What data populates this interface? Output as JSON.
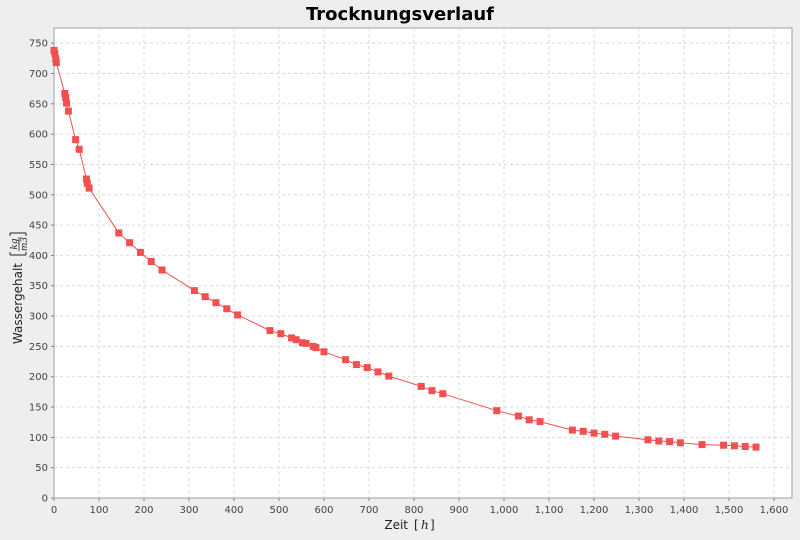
{
  "chart_data": {
    "type": "line",
    "title": "Trocknungsverlauf",
    "xlabel": "Zeit",
    "x_unit": "h",
    "ylabel": "Wassergehalt",
    "y_unit_num": "kg",
    "y_unit_den": "m3",
    "xlim": [
      0,
      1640
    ],
    "ylim": [
      0,
      775
    ],
    "xticks": [
      0,
      100,
      200,
      300,
      400,
      500,
      600,
      700,
      800,
      900,
      1000,
      1100,
      1200,
      1300,
      1400,
      1500,
      1600
    ],
    "xtick_labels": [
      "0",
      "100",
      "200",
      "300",
      "400",
      "500",
      "600",
      "700",
      "800",
      "900",
      "1,000",
      "1,100",
      "1,200",
      "1,300",
      "1,400",
      "1,500",
      "1,600"
    ],
    "yticks": [
      0,
      50,
      100,
      150,
      200,
      250,
      300,
      350,
      400,
      450,
      500,
      550,
      600,
      650,
      700,
      750
    ],
    "grid": true,
    "colors": {
      "series": "#f05050",
      "plot_bg": "#ffffff",
      "grid": "#d9d9d9"
    },
    "series": [
      {
        "marker": "square",
        "points": [
          [
            0,
            738
          ],
          [
            2,
            733
          ],
          [
            4,
            724
          ],
          [
            5,
            718
          ],
          [
            24,
            667
          ],
          [
            26,
            660
          ],
          [
            28,
            651
          ],
          [
            32,
            638
          ],
          [
            48,
            591
          ],
          [
            56,
            575
          ],
          [
            72,
            526
          ],
          [
            74,
            519
          ],
          [
            78,
            511
          ],
          [
            144,
            437
          ],
          [
            168,
            421
          ],
          [
            192,
            405
          ],
          [
            216,
            390
          ],
          [
            240,
            376
          ],
          [
            312,
            342
          ],
          [
            336,
            332
          ],
          [
            360,
            322
          ],
          [
            384,
            312
          ],
          [
            408,
            302
          ],
          [
            480,
            276
          ],
          [
            504,
            271
          ],
          [
            528,
            264
          ],
          [
            538,
            261
          ],
          [
            552,
            256
          ],
          [
            560,
            255
          ],
          [
            576,
            250
          ],
          [
            582,
            248
          ],
          [
            600,
            241
          ],
          [
            648,
            228
          ],
          [
            672,
            220
          ],
          [
            696,
            215
          ],
          [
            720,
            208
          ],
          [
            744,
            201
          ],
          [
            816,
            184
          ],
          [
            840,
            177
          ],
          [
            864,
            172
          ],
          [
            984,
            144
          ],
          [
            1032,
            135
          ],
          [
            1056,
            129
          ],
          [
            1080,
            126
          ],
          [
            1152,
            112
          ],
          [
            1176,
            110
          ],
          [
            1200,
            107
          ],
          [
            1224,
            105
          ],
          [
            1248,
            102
          ],
          [
            1320,
            96
          ],
          [
            1344,
            94
          ],
          [
            1368,
            93
          ],
          [
            1392,
            91
          ],
          [
            1440,
            88
          ],
          [
            1488,
            87
          ],
          [
            1512,
            86
          ],
          [
            1536,
            85
          ],
          [
            1560,
            84
          ]
        ]
      }
    ]
  }
}
